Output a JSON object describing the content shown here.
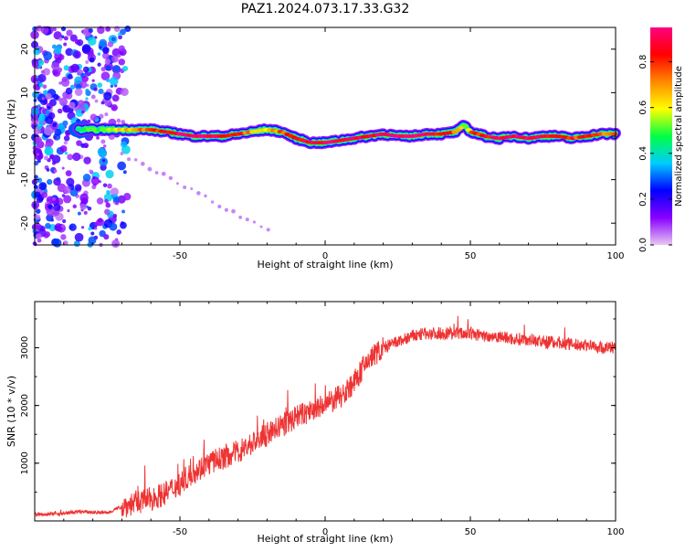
{
  "title": "PAZ1.2024.073.17.33.G32",
  "chart_data": [
    {
      "type": "heatmap",
      "xlabel": "Height of straight line (km)",
      "ylabel": "Frequency (Hz)",
      "xlim": [
        -100,
        100
      ],
      "ylim": [
        -25,
        25
      ],
      "xticks": [
        -50,
        0,
        50,
        100
      ],
      "yticks": [
        -20,
        -10,
        0,
        10,
        20
      ],
      "colorbar": {
        "label": "Normalized spectral amplitude",
        "range": [
          0,
          0.95
        ],
        "ticks": [
          0.0,
          0.2,
          0.4,
          0.6,
          0.8
        ],
        "colormap": [
          "#e8c8f0",
          "#8800ff",
          "#0000ff",
          "#00ccff",
          "#00ff44",
          "#ffff00",
          "#ff8800",
          "#ff0000",
          "#ff0080"
        ]
      },
      "ridge": {
        "x": [
          -85,
          -80,
          -75,
          -70,
          -65,
          -60,
          -55,
          -50,
          -45,
          -40,
          -35,
          -30,
          -25,
          -20,
          -15,
          -10,
          -5,
          0,
          5,
          10,
          15,
          20,
          25,
          30,
          35,
          40,
          45,
          48,
          50,
          55,
          60,
          65,
          70,
          75,
          80,
          85,
          90,
          95,
          100
        ],
        "y": [
          1.5,
          1.5,
          1.5,
          1.5,
          1.5,
          1.5,
          1.0,
          0.5,
          0.0,
          0.0,
          0.0,
          0.5,
          1.0,
          1.5,
          1.0,
          -0.5,
          -1.5,
          -1.5,
          -1.0,
          -0.5,
          0.0,
          0.5,
          0.0,
          0.0,
          0.5,
          0.5,
          1.0,
          2.5,
          1.0,
          0.0,
          -0.5,
          0.0,
          -0.5,
          0.0,
          0.0,
          -0.5,
          0.0,
          0.5,
          0.5
        ],
        "amplitude": [
          0.45,
          0.5,
          0.55,
          0.6,
          0.7,
          0.75,
          0.85,
          0.9,
          0.95,
          0.95,
          0.9,
          0.85,
          0.7,
          0.65,
          0.75,
          0.85,
          0.9,
          0.95,
          0.95,
          0.9,
          0.85,
          0.9,
          0.95,
          0.95,
          0.9,
          0.85,
          0.75,
          0.5,
          0.75,
          0.85,
          0.9,
          0.95,
          0.95,
          0.9,
          0.85,
          0.8,
          0.8,
          0.75,
          0.75
        ]
      }
    },
    {
      "type": "line",
      "xlabel": "Height of straight line (km)",
      "ylabel": "SNR (10 * v/v)",
      "xlim": [
        -100,
        100
      ],
      "ylim": [
        0,
        3800
      ],
      "xticks": [
        -50,
        0,
        50,
        100
      ],
      "yticks": [
        1000,
        2000,
        3000
      ],
      "color": "#ee3333",
      "x": [
        -100,
        -95,
        -90,
        -85,
        -80,
        -75,
        -70,
        -65,
        -60,
        -55,
        -50,
        -45,
        -40,
        -35,
        -30,
        -25,
        -20,
        -15,
        -10,
        -5,
        0,
        5,
        10,
        15,
        20,
        25,
        30,
        35,
        40,
        45,
        50,
        55,
        60,
        65,
        70,
        75,
        80,
        85,
        90,
        95,
        100
      ],
      "y": [
        120,
        120,
        130,
        160,
        150,
        140,
        250,
        320,
        380,
        480,
        650,
        850,
        1000,
        1100,
        1200,
        1350,
        1500,
        1650,
        1800,
        1900,
        2000,
        2150,
        2400,
        2800,
        3000,
        3100,
        3200,
        3250,
        3250,
        3250,
        3250,
        3200,
        3200,
        3150,
        3150,
        3100,
        3100,
        3050,
        3050,
        3000,
        3000
      ]
    }
  ]
}
